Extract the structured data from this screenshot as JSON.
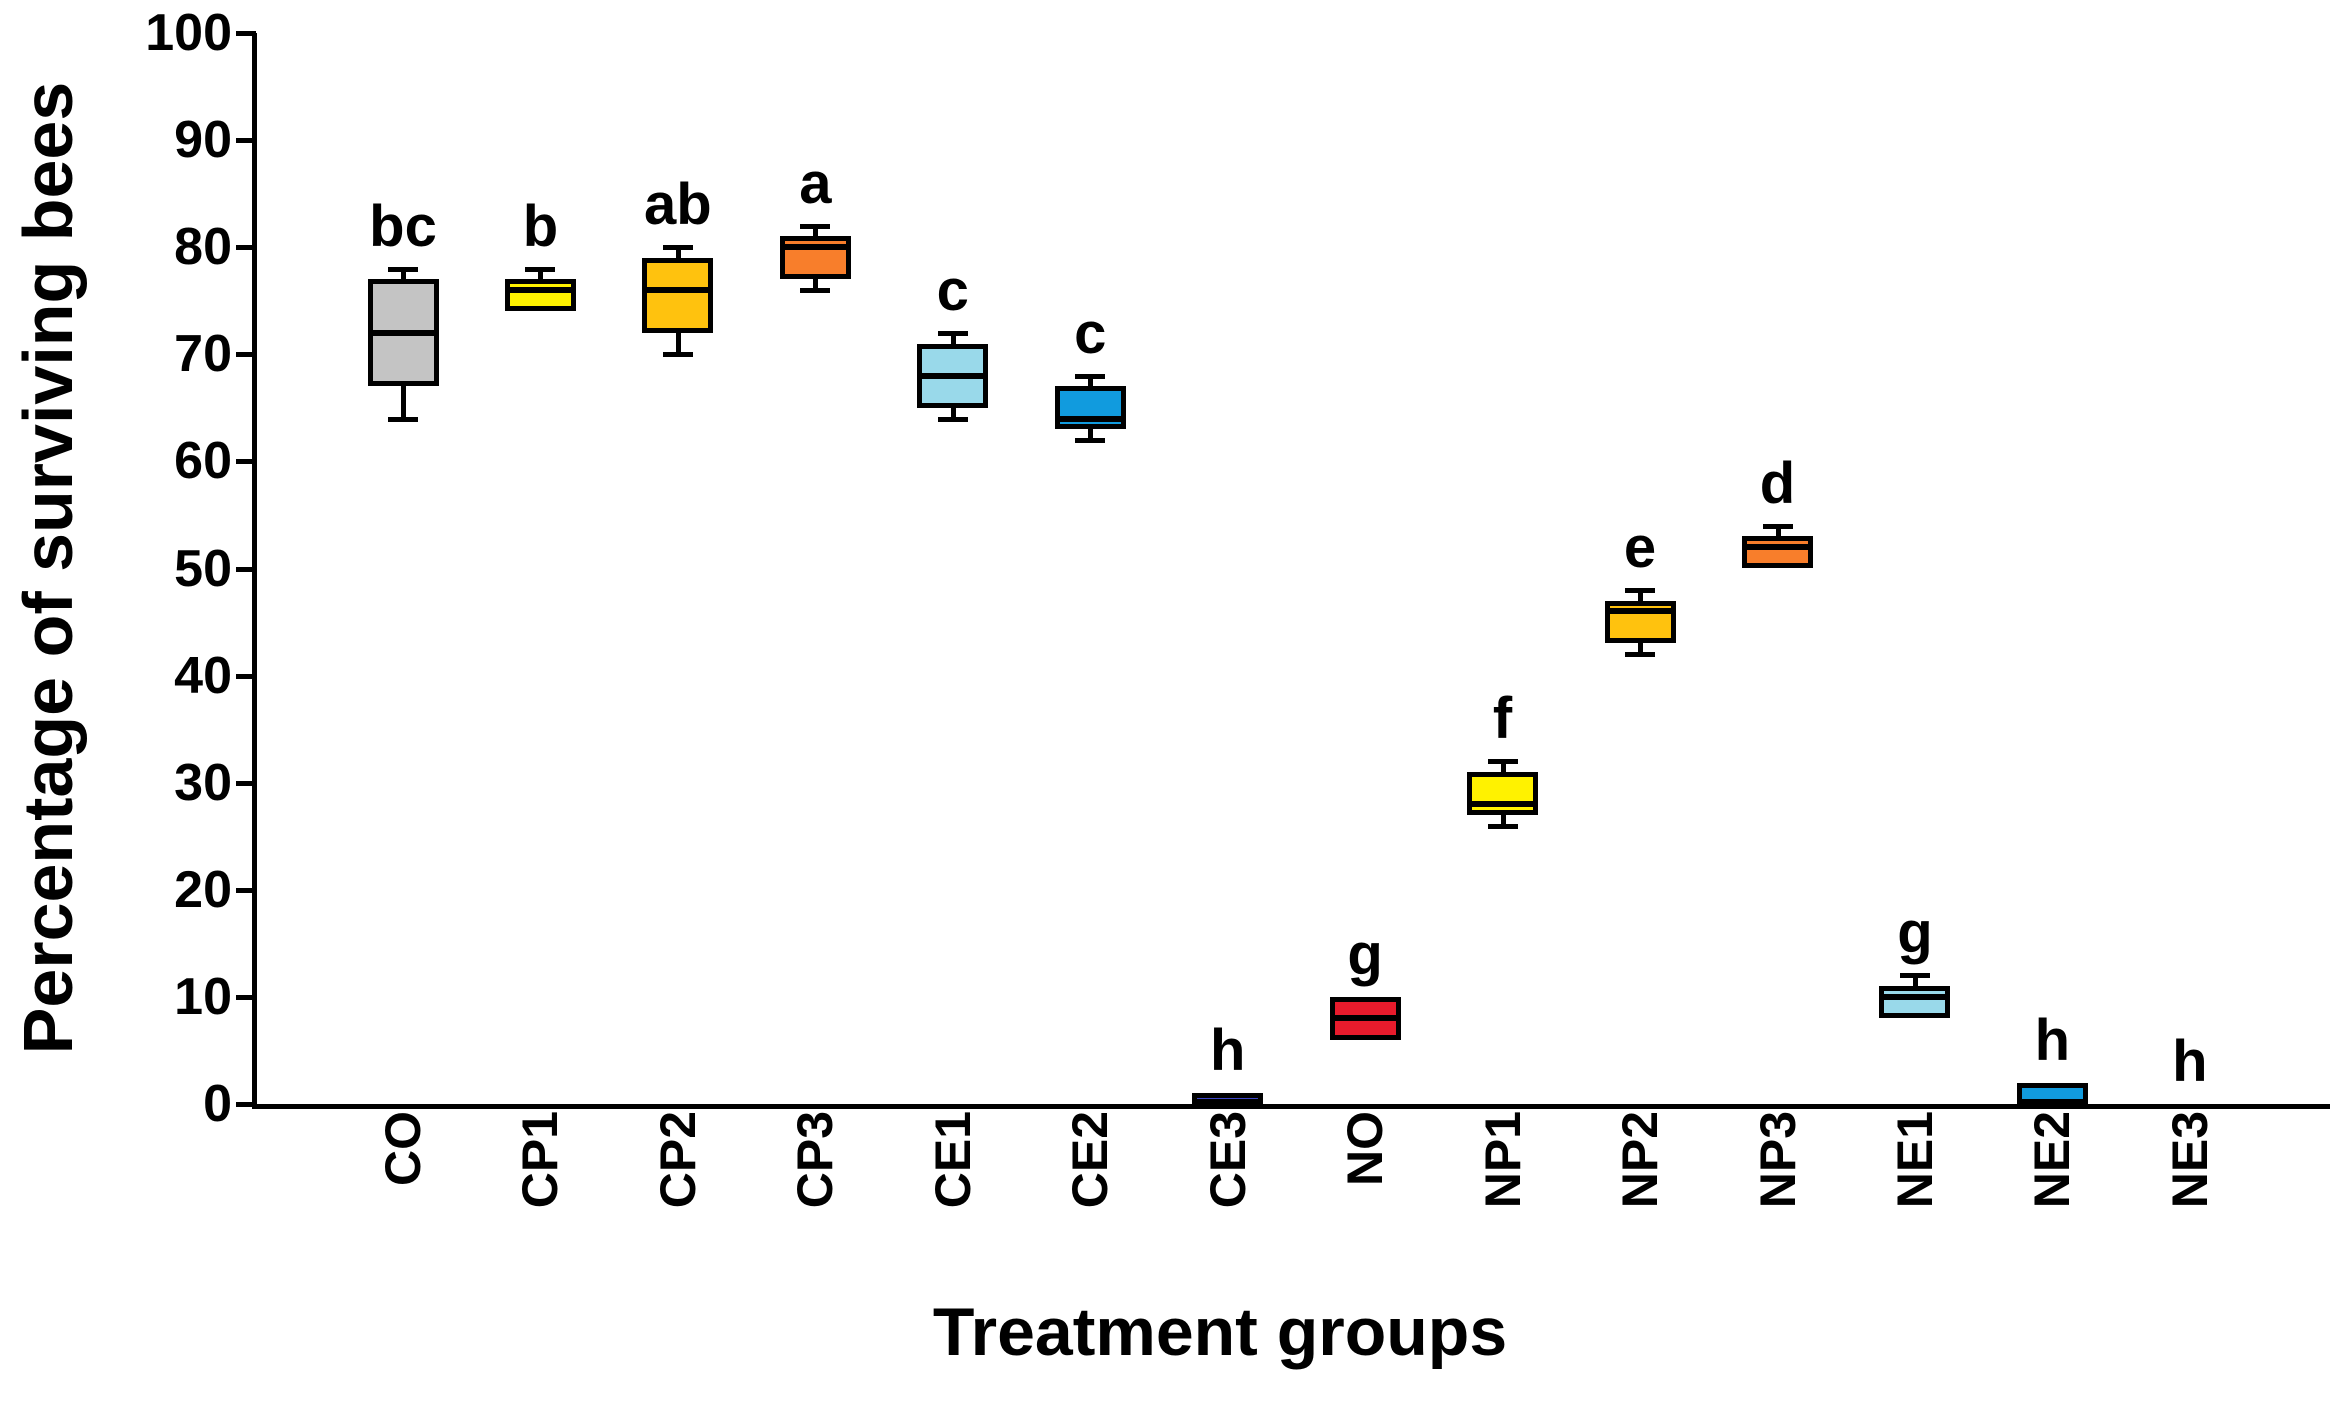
{
  "chart_data": {
    "type": "box",
    "title": "",
    "xlabel": "Treatment groups",
    "ylabel": "Percentage of surviving bees",
    "ylim": [
      0,
      100
    ],
    "yticks": [
      0,
      10,
      20,
      30,
      40,
      50,
      60,
      70,
      80,
      90,
      100
    ],
    "grid": false,
    "legend": null,
    "groups": [
      {
        "label": "CO",
        "letter": "bc",
        "color": "#C4C4C4",
        "min": 64,
        "q1": 67,
        "median": 72,
        "q3": 77,
        "max": 78
      },
      {
        "label": "CP1",
        "letter": "b",
        "color": "#FFF200",
        "min": 74,
        "q1": 74,
        "median": 76,
        "q3": 77,
        "max": 78
      },
      {
        "label": "CP2",
        "letter": "ab",
        "color": "#FFC20E",
        "min": 70,
        "q1": 72,
        "median": 76,
        "q3": 79,
        "max": 80
      },
      {
        "label": "CP3",
        "letter": "a",
        "color": "#F87E2B",
        "min": 76,
        "q1": 77,
        "median": 80,
        "q3": 81,
        "max": 82
      },
      {
        "label": "CE1",
        "letter": "c",
        "color": "#99D9EA",
        "min": 64,
        "q1": 65,
        "median": 68,
        "q3": 71,
        "max": 72
      },
      {
        "label": "CE2",
        "letter": "c",
        "color": "#119BDE",
        "min": 62,
        "q1": 63,
        "median": 64,
        "q3": 67,
        "max": 68
      },
      {
        "label": "CE3",
        "letter": "h",
        "color": "#3C45C8",
        "min": 0,
        "q1": 0,
        "median": null,
        "q3": 1,
        "max": 1
      },
      {
        "label": "NO",
        "letter": "g",
        "color": "#E81B2C",
        "min": 6,
        "q1": 6,
        "median": 8,
        "q3": 10,
        "max": 10
      },
      {
        "label": "NP1",
        "letter": "f",
        "color": "#FFF200",
        "min": 26,
        "q1": 27,
        "median": 28,
        "q3": 31,
        "max": 32
      },
      {
        "label": "NP2",
        "letter": "e",
        "color": "#FFC20E",
        "min": 42,
        "q1": 43,
        "median": 46,
        "q3": 47,
        "max": 48
      },
      {
        "label": "NP3",
        "letter": "d",
        "color": "#F87E2B",
        "min": 50,
        "q1": 50,
        "median": 52,
        "q3": 53,
        "max": 54
      },
      {
        "label": "NE1",
        "letter": "g",
        "color": "#99D9EA",
        "min": 8,
        "q1": 8,
        "median": 10,
        "q3": 11,
        "max": 12
      },
      {
        "label": "NE2",
        "letter": "h",
        "color": "#119BDE",
        "min": 0,
        "q1": 0,
        "median": null,
        "q3": 2,
        "max": 2
      },
      {
        "label": "NE3",
        "letter": "h",
        "color": null,
        "min": null,
        "q1": null,
        "median": null,
        "q3": null,
        "max": null
      }
    ],
    "colors": {
      "gray": "#C4C4C4",
      "yellow": "#FFF200",
      "amber": "#FFC20E",
      "orange": "#F87E2B",
      "light_blue": "#99D9EA",
      "azure_blue": "#119BDE",
      "navy_blue": "#3C45C8",
      "red": "#E81B2C",
      "axis": "#000000"
    }
  }
}
